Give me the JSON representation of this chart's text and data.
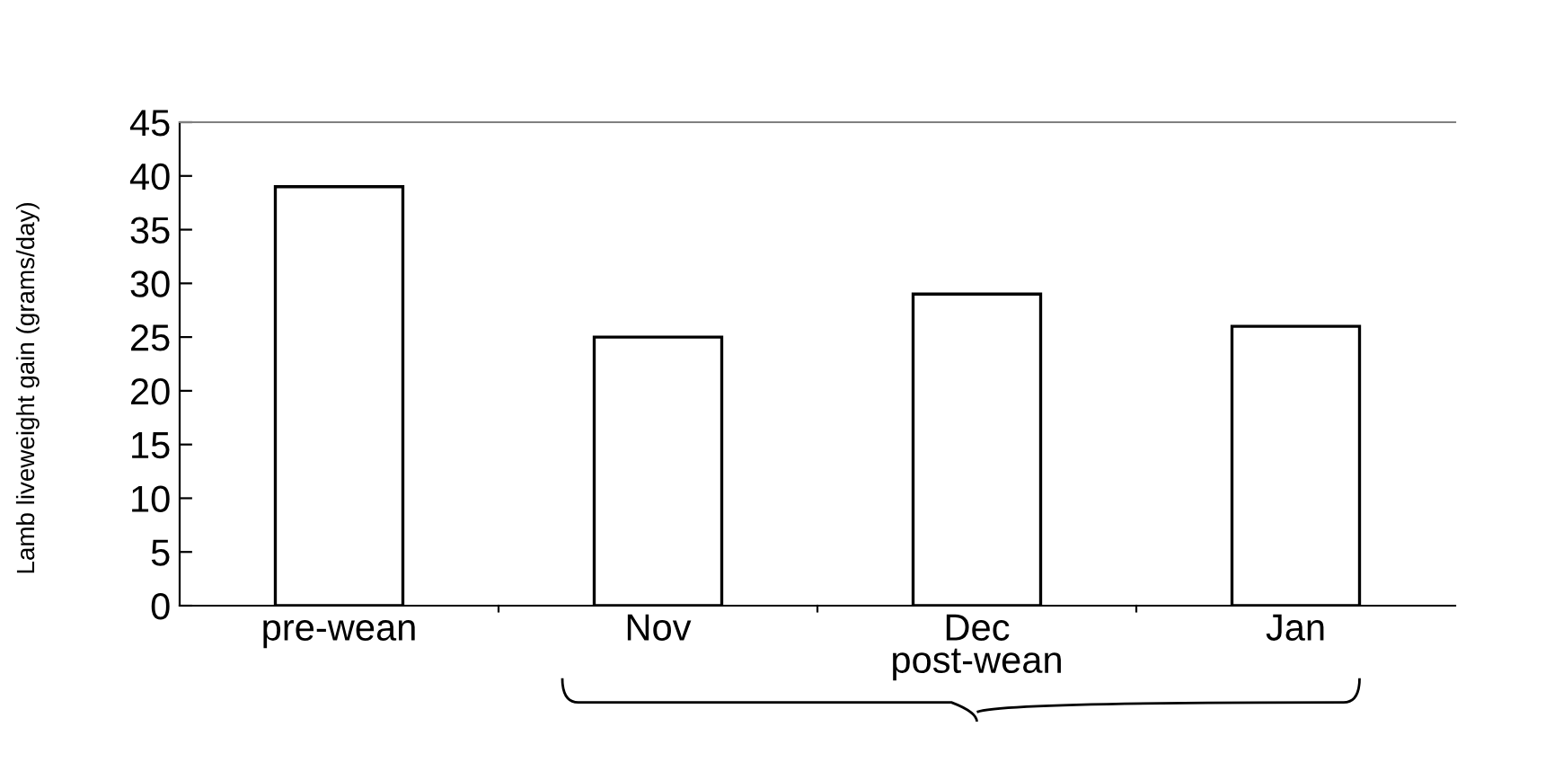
{
  "chart_data": {
    "type": "bar",
    "ylabel": "Lamb liveweight gain (grams/day)",
    "categories": [
      "pre-wean",
      "Nov",
      "Dec",
      "Jan"
    ],
    "values": [
      39,
      25,
      29,
      26
    ],
    "color": "#ffffff",
    "ylim": [
      0,
      45
    ],
    "yticks": [
      0,
      5,
      10,
      15,
      20,
      25,
      30,
      35,
      40,
      45
    ],
    "grid": false,
    "annotations": [
      "post-wean"
    ]
  }
}
